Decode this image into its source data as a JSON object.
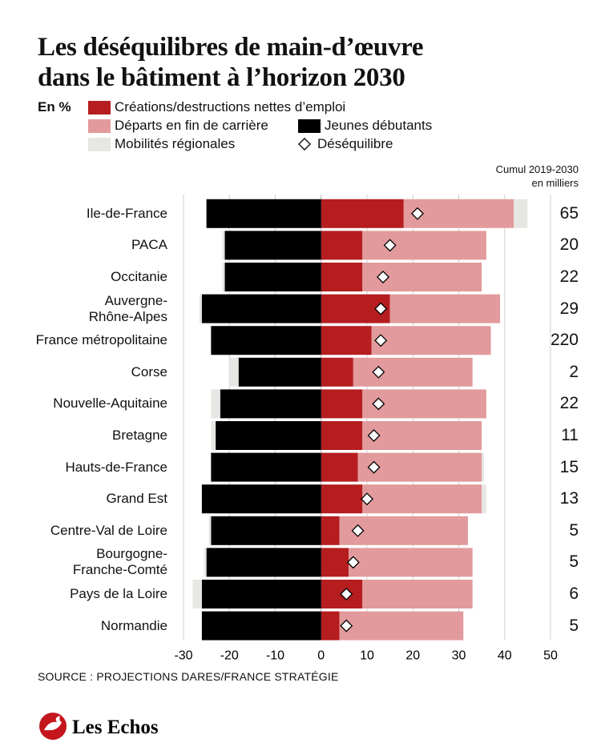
{
  "chart_data": {
    "type": "bar",
    "orientation": "horizontal",
    "stacked": true,
    "title": "Les déséquilibres de main-d’œuvre\ndans le bâtiment à l’horizon 2030",
    "unit_label": "En %",
    "categories": [
      "Ile-de-France",
      "PACA",
      "Occitanie",
      "Auvergne-\nRhône-Alpes",
      "France métropolitaine",
      "Corse",
      "Nouvelle-Aquitaine",
      "Bretagne",
      "Hauts-de-France",
      "Grand Est",
      "Centre-Val de Loire",
      "Bourgogne-\nFranche-Comté",
      "Pays de la Loire",
      "Normandie"
    ],
    "series": [
      {
        "name": "Créations/destructions nettes d’emploi",
        "color": "#b51d1f",
        "values": [
          18,
          9,
          9,
          15,
          11,
          7,
          9,
          9,
          8,
          9,
          4,
          6,
          9,
          4
        ]
      },
      {
        "name": "Départs en fin de carrière",
        "color": "#e29a9c",
        "values": [
          24,
          27,
          26,
          24,
          26,
          26,
          27,
          26,
          27,
          26,
          28,
          27,
          24,
          27
        ]
      },
      {
        "name": "Jeunes débutants",
        "color": "#000000",
        "values": [
          -25,
          -21,
          -21,
          -26,
          -24,
          -18,
          -22,
          -23,
          -24,
          -26,
          -24,
          -25,
          -26,
          -26
        ]
      },
      {
        "name": "Mobilités régionales",
        "color": "#e8e6e3",
        "values": [
          3,
          -0.5,
          -0.5,
          -0.5,
          0,
          -2,
          -2,
          -1,
          0.5,
          1,
          -0.5,
          -0.5,
          -2,
          0
        ]
      }
    ],
    "balance": {
      "name": "Déséquilibre",
      "values": [
        21,
        15,
        13.5,
        13,
        13,
        12.5,
        12.5,
        11.5,
        11.5,
        10,
        8,
        7,
        5.5,
        5.5
      ]
    },
    "cumul": {
      "label": "Cumul 2019-2030",
      "sublabel": "en milliers",
      "values": [
        65,
        20,
        22,
        29,
        220,
        2,
        22,
        11,
        15,
        13,
        5,
        5,
        6,
        5
      ]
    },
    "xlim": [
      -30,
      50
    ],
    "xticks": [
      -30,
      -20,
      -10,
      0,
      10,
      20,
      30,
      40,
      50
    ],
    "grid": true,
    "source": "SOURCE : PROJECTIONS DARES/FRANCE STRATÉGIE",
    "brand": "Les Echos"
  }
}
